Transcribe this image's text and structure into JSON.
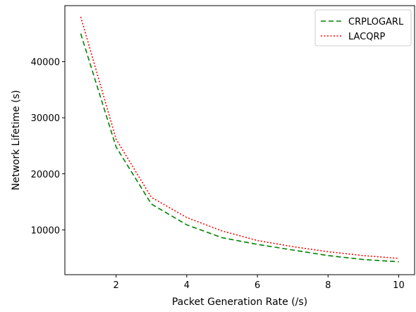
{
  "chart_data": {
    "type": "line",
    "title": "",
    "xlabel": "Packet Generation Rate (/s)",
    "ylabel": "Network Lifetime (s)",
    "xlim": [
      0.55,
      10.45
    ],
    "ylim": [
      2000,
      50000
    ],
    "xticks": [
      2,
      4,
      6,
      8,
      10
    ],
    "xtick_labels": [
      "2",
      "4",
      "6",
      "8",
      "10"
    ],
    "yticks": [
      10000,
      20000,
      30000,
      40000
    ],
    "ytick_labels": [
      "10000",
      "20000",
      "30000",
      "40000"
    ],
    "grid": false,
    "legend_position": "top-right",
    "x": [
      1,
      2,
      3,
      4,
      5,
      6,
      7,
      8,
      9,
      10
    ],
    "series": [
      {
        "name": "CRPLOGARL",
        "values": [
          45000,
          24800,
          14600,
          10900,
          8600,
          7400,
          6400,
          5400,
          4700,
          4300
        ],
        "color": "#008000",
        "line_style": "dashed"
      },
      {
        "name": "LACQRP",
        "values": [
          48000,
          26200,
          15800,
          12200,
          9800,
          8100,
          7000,
          6100,
          5400,
          4900
        ],
        "color": "#ff0000",
        "line_style": "dotted"
      }
    ]
  }
}
